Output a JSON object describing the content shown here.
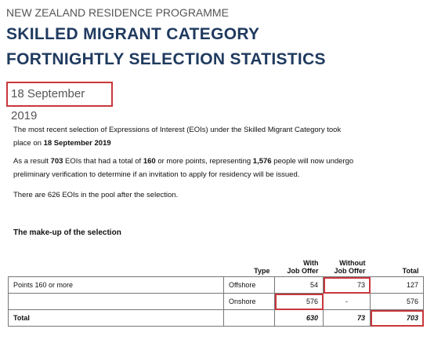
{
  "header": {
    "programme": "NEW ZEALAND RESIDENCE PROGRAMME",
    "title_lines": [
      "SKILLED MIGRANT CATEGORY",
      "FORTNIGHTLY SELECTION STATISTICS"
    ],
    "date": "18 September 2019"
  },
  "paragraphs": [
    [
      {
        "text": "The most recent selection of Expressions of Interest (EOIs) under the Skilled Migrant Category took place on ",
        "bold": false
      },
      {
        "text": "18 September 2019",
        "bold": true
      }
    ],
    [
      {
        "text": "As a result ",
        "bold": false
      },
      {
        "text": "703",
        "bold": true
      },
      {
        "text": " EOIs that had a total of ",
        "bold": false
      },
      {
        "text": "160",
        "bold": true
      },
      {
        "text": " or more points, representing ",
        "bold": false
      },
      {
        "text": "1,576",
        "bold": true
      },
      {
        "text": " people will now undergo preliminary verification to determine if an invitation to apply for residency will be issued.",
        "bold": false
      }
    ],
    [
      {
        "text": "There are 626 EOIs in the pool after the selection.",
        "bold": false
      }
    ]
  ],
  "table": {
    "title": "The make-up of the selection",
    "headers": [
      null,
      [
        "Type"
      ],
      [
        "With",
        "Job Offer"
      ],
      [
        "Without",
        "Job Offer"
      ],
      [
        "Total"
      ]
    ],
    "rows": [
      [
        "Points 160 or more",
        "Offshore",
        54,
        73,
        127
      ],
      [
        null,
        "Onshore",
        576,
        "-",
        576
      ],
      [
        "Total",
        null,
        630,
        73,
        703
      ]
    ]
  }
}
